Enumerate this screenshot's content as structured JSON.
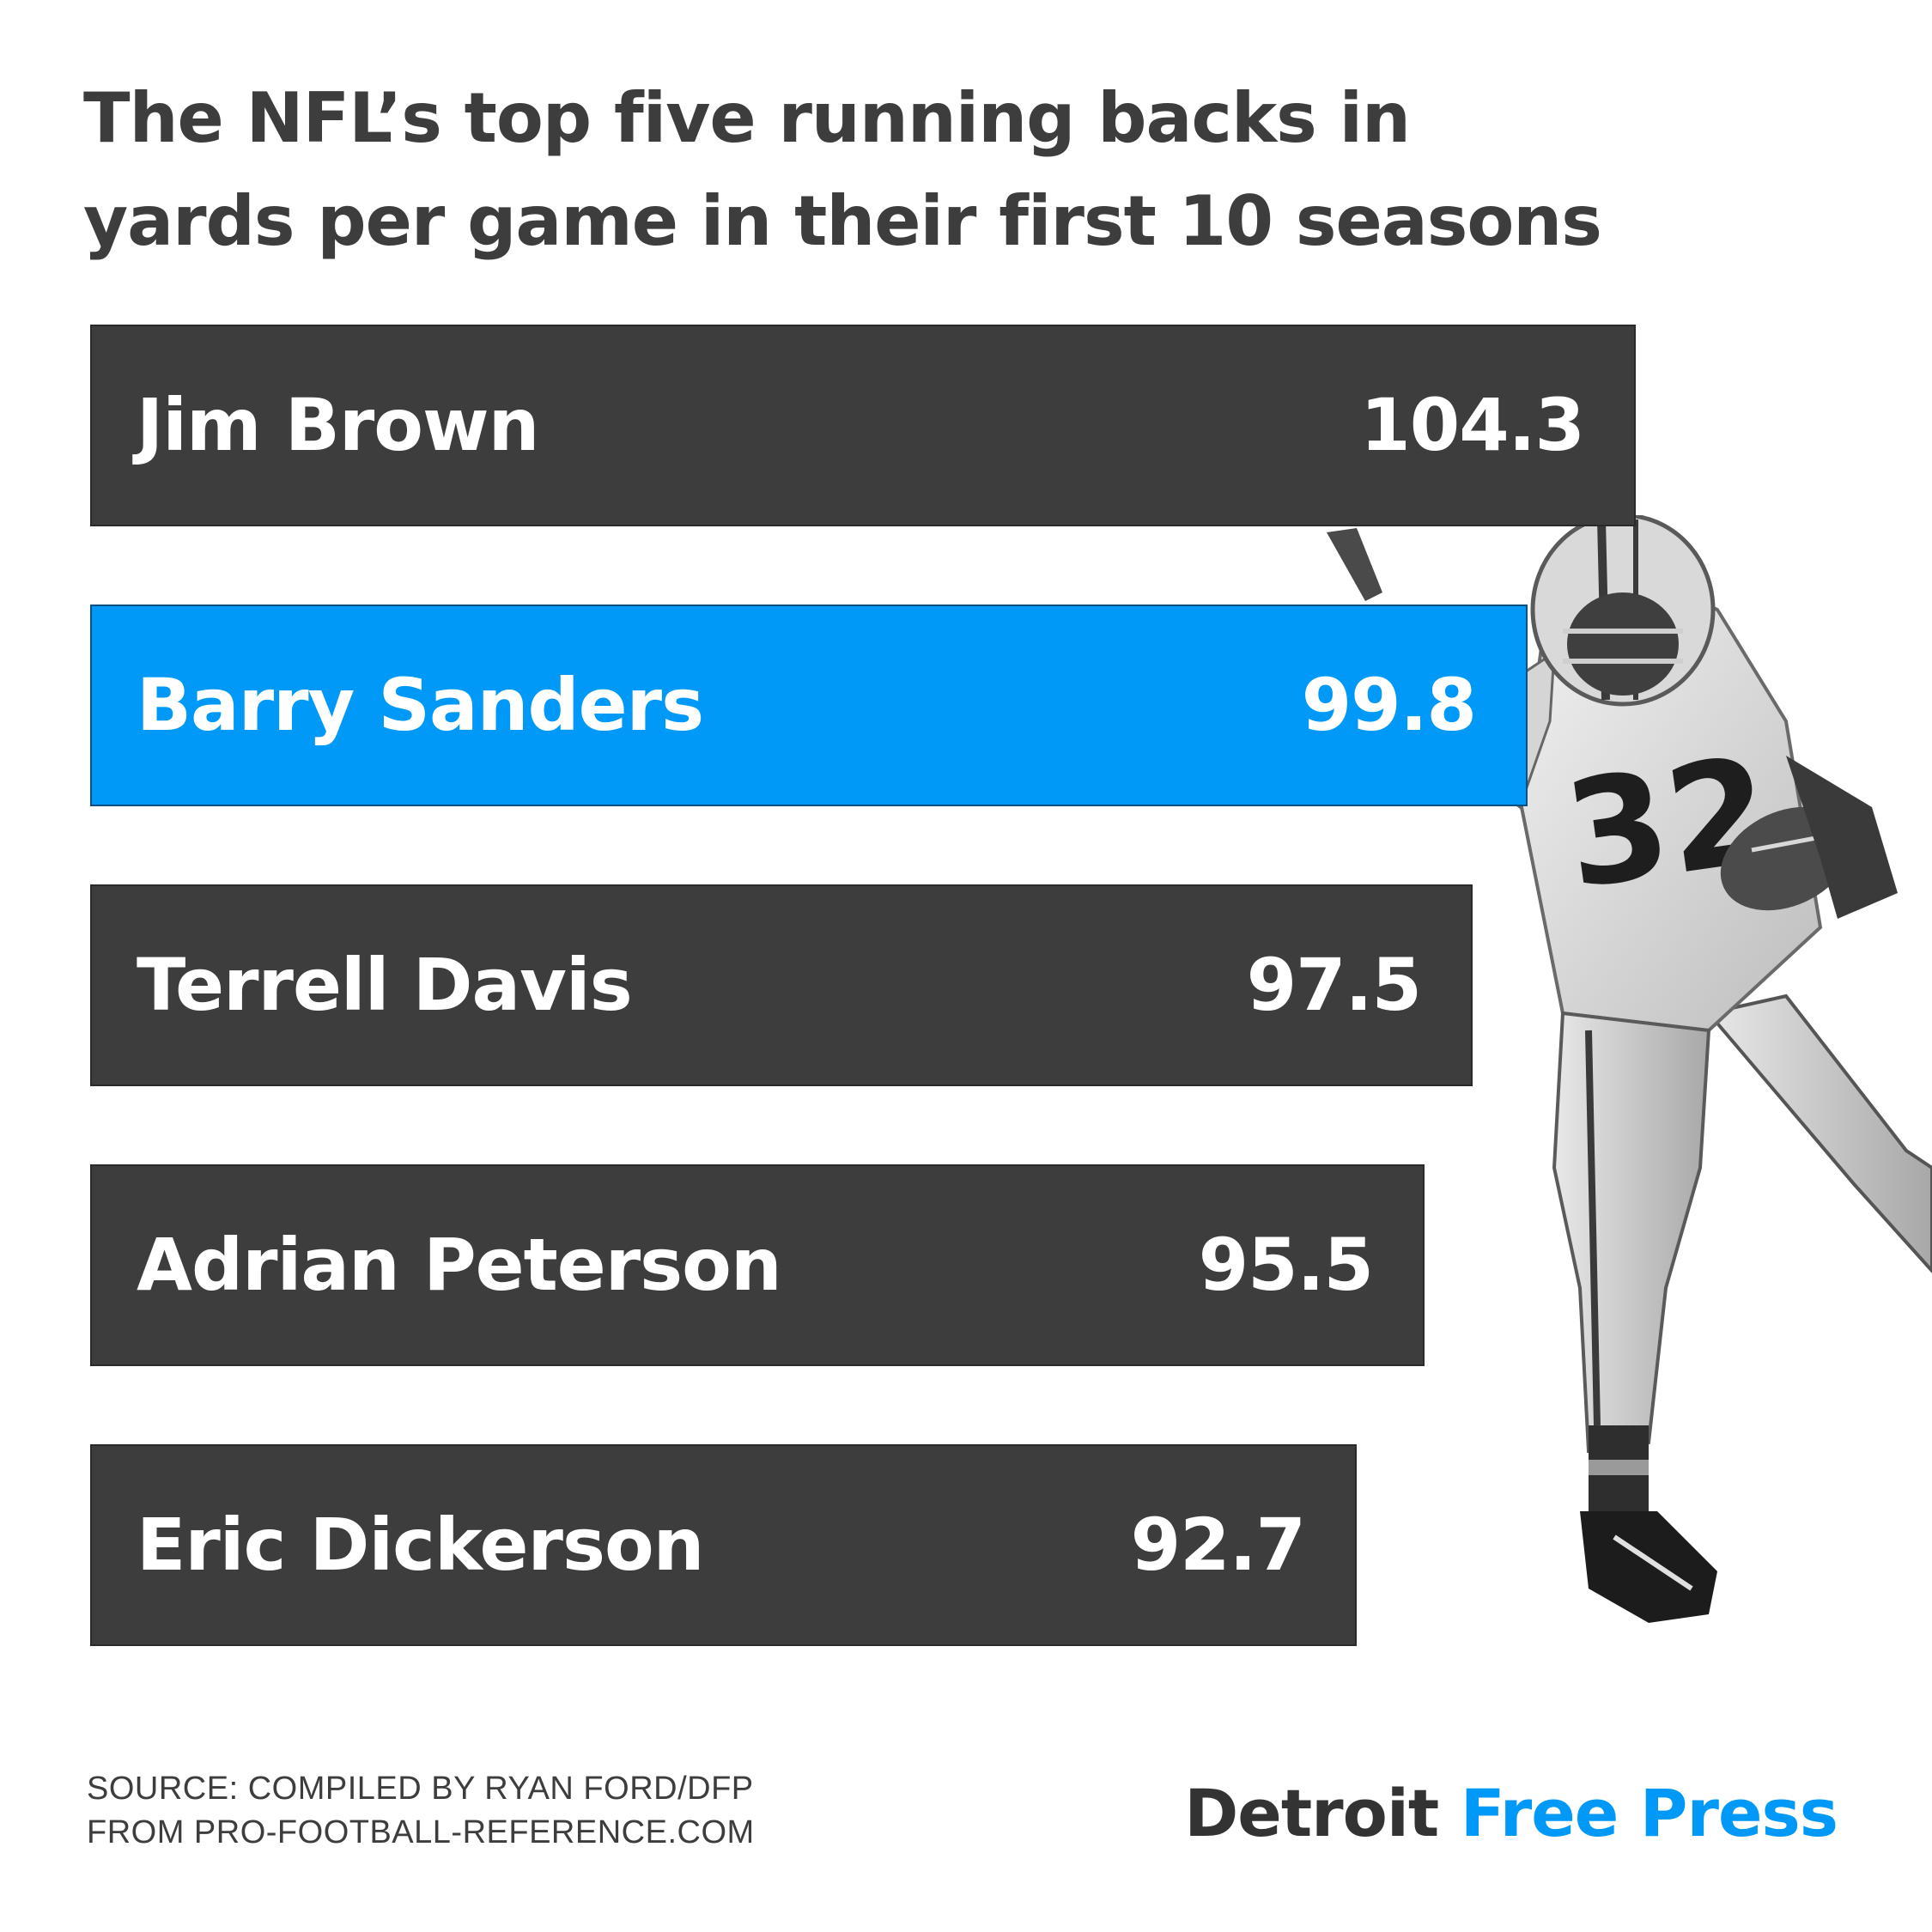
{
  "title_lines": [
    "The NFL’s top five running backs in",
    "yards per game in their first 10 seasons"
  ],
  "colors": {
    "bar_default": "#3d3d3d",
    "bar_highlight": "#0099f7",
    "text_dark": "#3d3d3d",
    "brand_blue": "#0099f7"
  },
  "chart_data": {
    "type": "bar",
    "orientation": "horizontal",
    "categories": [
      "Jim Brown",
      "Barry Sanders",
      "Terrell Davis",
      "Adrian Peterson",
      "Eric Dickerson"
    ],
    "values": [
      104.3,
      99.8,
      97.5,
      95.5,
      92.7
    ],
    "value_labels": [
      "104.3",
      "99.8",
      "97.5",
      "95.5",
      "92.7"
    ],
    "highlighted": "Barry Sanders",
    "title": "The NFL’s top five running backs in yards per game in their first 10 seasons",
    "grid": false,
    "legend": "none"
  },
  "source_lines": [
    "SOURCE: COMPILED BY RYAN FORD/DFP",
    "FROM PRO-FOOTBALL-REFERENCE.COM"
  ],
  "logo": {
    "word1": "Detroit",
    "word2": "Free Press"
  },
  "photo_icon": "football-player-number-32-photo"
}
